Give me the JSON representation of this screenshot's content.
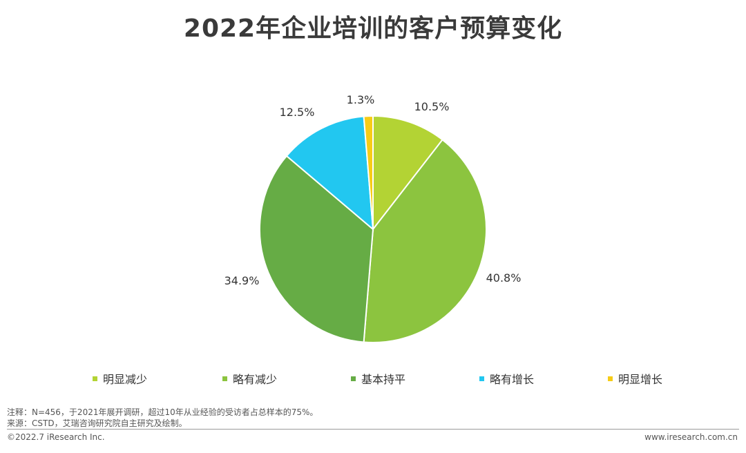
{
  "title": "2022年企业培训的客户预算变化",
  "chart_data": {
    "type": "pie",
    "title": "2022年企业培训的客户预算变化",
    "slices": [
      {
        "name": "明显减少",
        "value": 10.5,
        "label": "10.5%",
        "color": "#b3d334"
      },
      {
        "name": "略有减少",
        "value": 40.8,
        "label": "40.8%",
        "color": "#8cc43f"
      },
      {
        "name": "基本持平",
        "value": 34.9,
        "label": "34.9%",
        "color": "#66ac45"
      },
      {
        "name": "略有增长",
        "value": 12.5,
        "label": "12.5%",
        "color": "#22c7f0"
      },
      {
        "name": "明显增长",
        "value": 1.3,
        "label": "1.3%",
        "color": "#f6cc17"
      }
    ],
    "legend_placement": "bottom"
  },
  "legend": [
    {
      "label": "明显减少",
      "color": "#b3d334"
    },
    {
      "label": "略有减少",
      "color": "#8cc43f"
    },
    {
      "label": "基本持平",
      "color": "#66ac45"
    },
    {
      "label": "略有增长",
      "color": "#22c7f0"
    },
    {
      "label": "明显增长",
      "color": "#f6cc17"
    }
  ],
  "notes": {
    "note": "注释：N=456，于2021年展开调研，超过10年从业经验的受访者占总样本的75%。",
    "source": "来源：CSTD，艾瑞咨询研究院自主研究及绘制。"
  },
  "footer": {
    "copyright": "©2022.7 iResearch Inc.",
    "website": "www.iresearch.com.cn"
  }
}
